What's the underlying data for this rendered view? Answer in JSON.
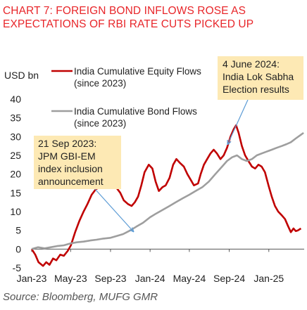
{
  "title_lines": [
    "CHART 7: FOREIGN BOND INFLOWS ROSE AS",
    "EXPECTATIONS OF RBI RATE CUTS PICKED UP"
  ],
  "source": "Source: Bloomberg, MUFG GMR",
  "colors": {
    "title": "#e8262a",
    "equity": "#c00000",
    "bond": "#9e9e9e",
    "annotation_fill": "#fde9b4",
    "annotation_line": "#5b9bd5"
  },
  "chart_data": {
    "type": "line",
    "ylabel": "USD bn",
    "ylim": [
      -5,
      40
    ],
    "yticks": [
      -5,
      0,
      5,
      10,
      15,
      20,
      25,
      30,
      35,
      40
    ],
    "xlim": [
      "2023-01-01",
      "2025-04-20"
    ],
    "xticks": [
      "Jan-23",
      "May-23",
      "Sep-23",
      "Jan-24",
      "May-24",
      "Sep-24",
      "Jan-25"
    ],
    "legend": [
      {
        "label_lines": [
          "India Cumulative Equity Flows",
          "(since 2023)"
        ],
        "series": "equity"
      },
      {
        "label_lines": [
          "India Cumulative Bond Flows",
          "(since 2023)"
        ],
        "series": "bond"
      }
    ],
    "series": [
      {
        "key": "equity",
        "name": "India Cumulative Equity Flows (since 2023)",
        "points": [
          [
            "2023-01-01",
            0
          ],
          [
            "2023-01-12",
            -1.5
          ],
          [
            "2023-01-22",
            -3.5
          ],
          [
            "2023-02-05",
            -4.5
          ],
          [
            "2023-02-15",
            -3.5
          ],
          [
            "2023-02-25",
            -4.2
          ],
          [
            "2023-03-08",
            -2.5
          ],
          [
            "2023-03-18",
            -3.0
          ],
          [
            "2023-03-30",
            -1.5
          ],
          [
            "2023-04-10",
            -1.8
          ],
          [
            "2023-04-22",
            -0.5
          ],
          [
            "2023-05-02",
            1.0
          ],
          [
            "2023-05-15",
            4.5
          ],
          [
            "2023-05-28",
            7.5
          ],
          [
            "2023-06-10",
            10.0
          ],
          [
            "2023-06-22",
            12.0
          ],
          [
            "2023-07-05",
            14.5
          ],
          [
            "2023-07-18",
            16.0
          ],
          [
            "2023-07-31",
            16.5
          ],
          [
            "2023-08-10",
            17.0
          ],
          [
            "2023-08-22",
            16.8
          ],
          [
            "2023-09-05",
            17.5
          ],
          [
            "2023-09-18",
            16.5
          ],
          [
            "2023-10-01",
            15.0
          ],
          [
            "2023-10-12",
            13.0
          ],
          [
            "2023-10-25",
            12.0
          ],
          [
            "2023-11-05",
            11.5
          ],
          [
            "2023-11-15",
            12.5
          ],
          [
            "2023-11-25",
            14.0
          ],
          [
            "2023-12-05",
            17.0
          ],
          [
            "2023-12-15",
            20.5
          ],
          [
            "2023-12-28",
            22.5
          ],
          [
            "2024-01-08",
            21.5
          ],
          [
            "2024-01-18",
            18.0
          ],
          [
            "2024-01-28",
            15.5
          ],
          [
            "2024-02-08",
            16.5
          ],
          [
            "2024-02-18",
            17.0
          ],
          [
            "2024-03-01",
            19.0
          ],
          [
            "2024-03-12",
            22.5
          ],
          [
            "2024-03-22",
            24.0
          ],
          [
            "2024-04-02",
            23.0
          ],
          [
            "2024-04-14",
            22.0
          ],
          [
            "2024-04-25",
            20.0
          ],
          [
            "2024-05-05",
            18.5
          ],
          [
            "2024-05-15",
            17.0
          ],
          [
            "2024-05-28",
            17.5
          ],
          [
            "2024-06-05",
            20.0
          ],
          [
            "2024-06-15",
            22.5
          ],
          [
            "2024-06-25",
            24.0
          ],
          [
            "2024-07-05",
            25.5
          ],
          [
            "2024-07-15",
            26.5
          ],
          [
            "2024-07-25",
            25.5
          ],
          [
            "2024-08-05",
            24.0
          ],
          [
            "2024-08-15",
            25.0
          ],
          [
            "2024-08-25",
            27.0
          ],
          [
            "2024-09-05",
            30.0
          ],
          [
            "2024-09-15",
            32.0
          ],
          [
            "2024-09-22",
            33.0
          ],
          [
            "2024-09-30",
            31.0
          ],
          [
            "2024-10-10",
            27.5
          ],
          [
            "2024-10-20",
            25.0
          ],
          [
            "2024-10-30",
            23.5
          ],
          [
            "2024-11-10",
            22.0
          ],
          [
            "2024-11-20",
            21.5
          ],
          [
            "2024-11-30",
            22.5
          ],
          [
            "2024-12-10",
            22.0
          ],
          [
            "2024-12-20",
            20.5
          ],
          [
            "2024-12-31",
            17.0
          ],
          [
            "2025-01-10",
            14.0
          ],
          [
            "2025-01-20",
            11.5
          ],
          [
            "2025-01-30",
            10.0
          ],
          [
            "2025-02-10",
            9.0
          ],
          [
            "2025-02-20",
            8.0
          ],
          [
            "2025-03-02",
            6.0
          ],
          [
            "2025-03-10",
            4.5
          ],
          [
            "2025-03-18",
            5.5
          ],
          [
            "2025-03-25",
            4.8
          ],
          [
            "2025-04-01",
            5.0
          ],
          [
            "2025-04-10",
            5.5
          ]
        ]
      },
      {
        "key": "bond",
        "name": "India Cumulative Bond Flows (since 2023)",
        "points": [
          [
            "2023-01-01",
            0
          ],
          [
            "2023-01-20",
            0.5
          ],
          [
            "2023-02-10",
            0.2
          ],
          [
            "2023-03-01",
            0.5
          ],
          [
            "2023-03-20",
            0.8
          ],
          [
            "2023-04-10",
            1.0
          ],
          [
            "2023-05-01",
            1.5
          ],
          [
            "2023-05-20",
            1.8
          ],
          [
            "2023-06-10",
            2.0
          ],
          [
            "2023-07-01",
            2.3
          ],
          [
            "2023-07-20",
            2.5
          ],
          [
            "2023-08-10",
            2.8
          ],
          [
            "2023-09-01",
            3.0
          ],
          [
            "2023-09-20",
            3.5
          ],
          [
            "2023-10-10",
            4.0
          ],
          [
            "2023-11-01",
            5.0
          ],
          [
            "2023-11-20",
            6.0
          ],
          [
            "2023-12-10",
            7.0
          ],
          [
            "2024-01-01",
            8.5
          ],
          [
            "2024-01-20",
            9.5
          ],
          [
            "2024-02-10",
            10.5
          ],
          [
            "2024-03-01",
            11.5
          ],
          [
            "2024-03-20",
            12.5
          ],
          [
            "2024-04-10",
            13.5
          ],
          [
            "2024-05-01",
            14.5
          ],
          [
            "2024-05-20",
            15.5
          ],
          [
            "2024-06-10",
            16.5
          ],
          [
            "2024-06-30",
            18.0
          ],
          [
            "2024-07-20",
            20.0
          ],
          [
            "2024-08-10",
            22.0
          ],
          [
            "2024-08-25",
            23.5
          ],
          [
            "2024-09-10",
            24.5
          ],
          [
            "2024-09-25",
            25.0
          ],
          [
            "2024-10-10",
            24.0
          ],
          [
            "2024-10-25",
            23.5
          ],
          [
            "2024-11-10",
            24.0
          ],
          [
            "2024-11-25",
            25.0
          ],
          [
            "2024-12-10",
            25.5
          ],
          [
            "2024-12-25",
            26.0
          ],
          [
            "2025-01-10",
            26.5
          ],
          [
            "2025-01-25",
            27.0
          ],
          [
            "2025-02-10",
            27.5
          ],
          [
            "2025-02-25",
            28.0
          ],
          [
            "2025-03-10",
            28.5
          ],
          [
            "2025-03-25",
            29.5
          ],
          [
            "2025-04-10",
            30.5
          ],
          [
            "2025-04-18",
            31.0
          ]
        ]
      }
    ],
    "annotations": [
      {
        "id": "gbi-em",
        "text_lines": [
          "21 Sep 2023:",
          "JPM GBI-EM",
          "index inclusion",
          "announcement"
        ],
        "date": "2023-09-21"
      },
      {
        "id": "election",
        "text_lines": [
          "4 June 2024:",
          "India Lok Sabha",
          "Election results"
        ],
        "date": "2024-06-04"
      }
    ],
    "grid": false,
    "legend_placement": "top-left"
  }
}
